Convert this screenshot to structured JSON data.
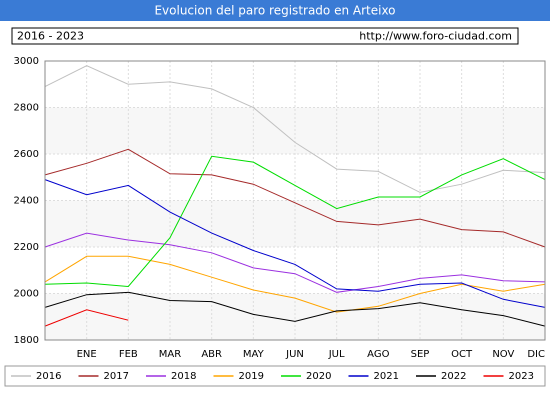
{
  "chart_data": {
    "type": "line",
    "title": "Evolucion del paro registrado en Arteixo",
    "subtitle": "2016 - 2023",
    "source": "http://www.foro-ciudad.com",
    "categories": [
      null,
      "ENE",
      "FEB",
      "MAR",
      "ABR",
      "MAY",
      "JUN",
      "JUL",
      "AGO",
      "SEP",
      "OCT",
      "NOV",
      "DIC"
    ],
    "ylim": [
      1800,
      3000
    ],
    "yticks": [
      1800,
      2000,
      2200,
      2400,
      2600,
      2800,
      3000
    ],
    "grid": true,
    "legend": "bottom",
    "series": [
      {
        "name": "2016",
        "color": "#c0c0c0",
        "values": [
          2890,
          2980,
          2900,
          2910,
          2880,
          2800,
          2650,
          2535,
          2525,
          2435,
          2470,
          2530,
          2520
        ]
      },
      {
        "name": "2017",
        "color": "#a52a2a",
        "values": [
          2510,
          2560,
          2620,
          2515,
          2510,
          2470,
          2390,
          2310,
          2295,
          2320,
          2275,
          2265,
          2200
        ]
      },
      {
        "name": "2018",
        "color": "#9b30e0",
        "values": [
          2200,
          2260,
          2230,
          2210,
          2175,
          2110,
          2085,
          2005,
          2030,
          2065,
          2080,
          2055,
          2050
        ]
      },
      {
        "name": "2019",
        "color": "#ffa500",
        "values": [
          2050,
          2160,
          2160,
          2125,
          2070,
          2015,
          1980,
          1920,
          1945,
          2000,
          2040,
          2010,
          2040
        ]
      },
      {
        "name": "2020",
        "color": "#00dd00",
        "values": [
          2040,
          2045,
          2030,
          2240,
          2590,
          2565,
          2465,
          2365,
          2415,
          2415,
          2510,
          2580,
          2490
        ]
      },
      {
        "name": "2021",
        "color": "#0000cc",
        "values": [
          2490,
          2425,
          2465,
          2350,
          2260,
          2185,
          2125,
          2020,
          2010,
          2040,
          2045,
          1975,
          1940
        ]
      },
      {
        "name": "2022",
        "color": "#000000",
        "values": [
          1940,
          1995,
          2005,
          1970,
          1965,
          1910,
          1880,
          1925,
          1935,
          1960,
          1930,
          1905,
          1860
        ]
      },
      {
        "name": "2023",
        "color": "#ee0000",
        "values": [
          1860,
          1930,
          1885,
          null,
          null,
          null,
          null,
          null,
          null,
          null,
          null,
          null,
          null
        ]
      }
    ]
  }
}
